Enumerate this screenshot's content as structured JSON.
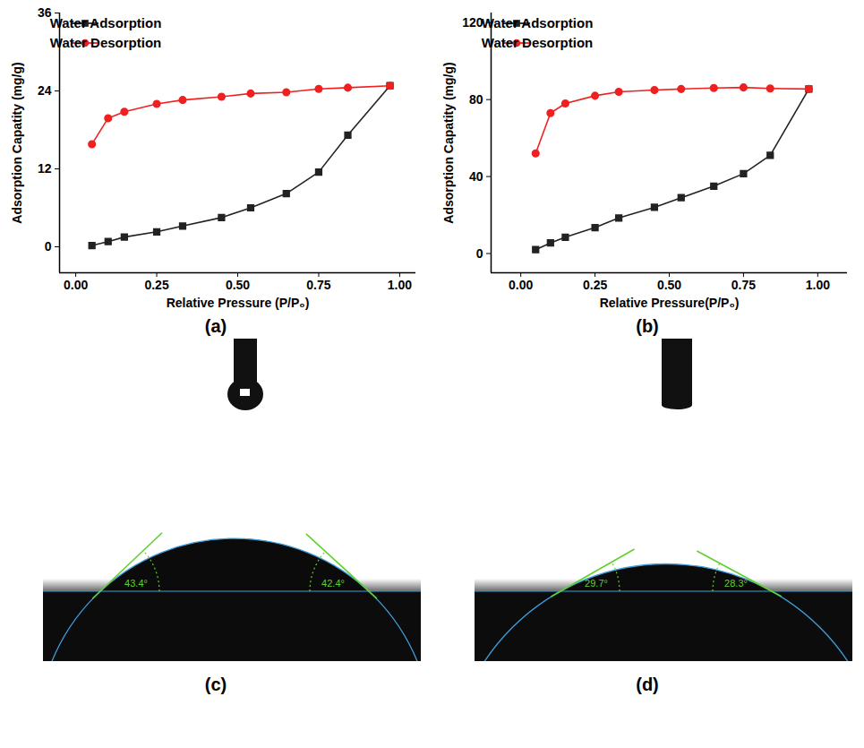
{
  "chart_data": [
    {
      "type": "line",
      "panel": "(a)",
      "x_label": "Relative Pressure (P/P₀)",
      "y_label": "Adsorption Capatity (mg/g)",
      "x": [
        0.05,
        0.1,
        0.15,
        0.25,
        0.33,
        0.45,
        0.54,
        0.65,
        0.75,
        0.84,
        0.97
      ],
      "series": [
        {
          "name": "Water Adsorption",
          "color": "#222222",
          "marker": "square",
          "values": [
            0.2,
            0.8,
            1.5,
            2.3,
            3.2,
            4.5,
            6.0,
            8.2,
            11.5,
            17.2,
            24.8
          ]
        },
        {
          "name": "Water Desorption",
          "color": "#f02020",
          "marker": "circle",
          "values": [
            15.8,
            19.8,
            20.8,
            22.0,
            22.6,
            23.1,
            23.6,
            23.8,
            24.3,
            24.5,
            24.8
          ]
        }
      ],
      "xlim": [
        -0.05,
        1.05
      ],
      "xticks": [
        {
          "value": 0,
          "label": "0.00"
        },
        {
          "value": 0.25,
          "label": "0.25"
        },
        {
          "value": 0.5,
          "label": "0.50"
        },
        {
          "value": 0.75,
          "label": "0.75"
        },
        {
          "value": 1,
          "label": "1.00"
        }
      ],
      "ylim": [
        -4,
        36
      ],
      "yticks": [
        0,
        12,
        24,
        36
      ],
      "grid": false,
      "legend": "top-left"
    },
    {
      "type": "line",
      "panel": "(b)",
      "x_label": "Relative Pressure(P/P₀)",
      "y_label": "Adsorption Capatity (mg/g)",
      "x": [
        0.05,
        0.1,
        0.15,
        0.25,
        0.33,
        0.45,
        0.54,
        0.65,
        0.75,
        0.84,
        0.97
      ],
      "series": [
        {
          "name": "Water Adsorption",
          "color": "#222222",
          "marker": "square",
          "values": [
            2,
            5.5,
            8.5,
            13.5,
            18.5,
            24,
            29,
            35,
            41.5,
            51,
            85.5
          ]
        },
        {
          "name": "Water Desorption",
          "color": "#f02020",
          "marker": "circle",
          "values": [
            52,
            73,
            78,
            82,
            84,
            85,
            85.5,
            86,
            86.3,
            85.8,
            85.5
          ]
        }
      ],
      "xlim": [
        -0.1,
        1.1
      ],
      "xticks": [
        {
          "value": 0,
          "label": "0.00"
        },
        {
          "value": 0.25,
          "label": "0.25"
        },
        {
          "value": 0.5,
          "label": "0.50"
        },
        {
          "value": 0.75,
          "label": "0.75"
        },
        {
          "value": 1,
          "label": "1.00"
        }
      ],
      "ylim": [
        -10,
        125
      ],
      "yticks": [
        0,
        40,
        80,
        120
      ],
      "grid": false,
      "legend": "top-left"
    }
  ],
  "images": [
    {
      "panel": "(c)",
      "contact_angles": [
        {
          "value": 43.4,
          "label": "43.4°"
        },
        {
          "value": 42.4,
          "label": "42.4°"
        }
      ]
    },
    {
      "panel": "(d)",
      "contact_angles": [
        {
          "value": 29.7,
          "label": "29.7°"
        },
        {
          "value": 28.3,
          "label": "28.3°"
        }
      ]
    }
  ]
}
